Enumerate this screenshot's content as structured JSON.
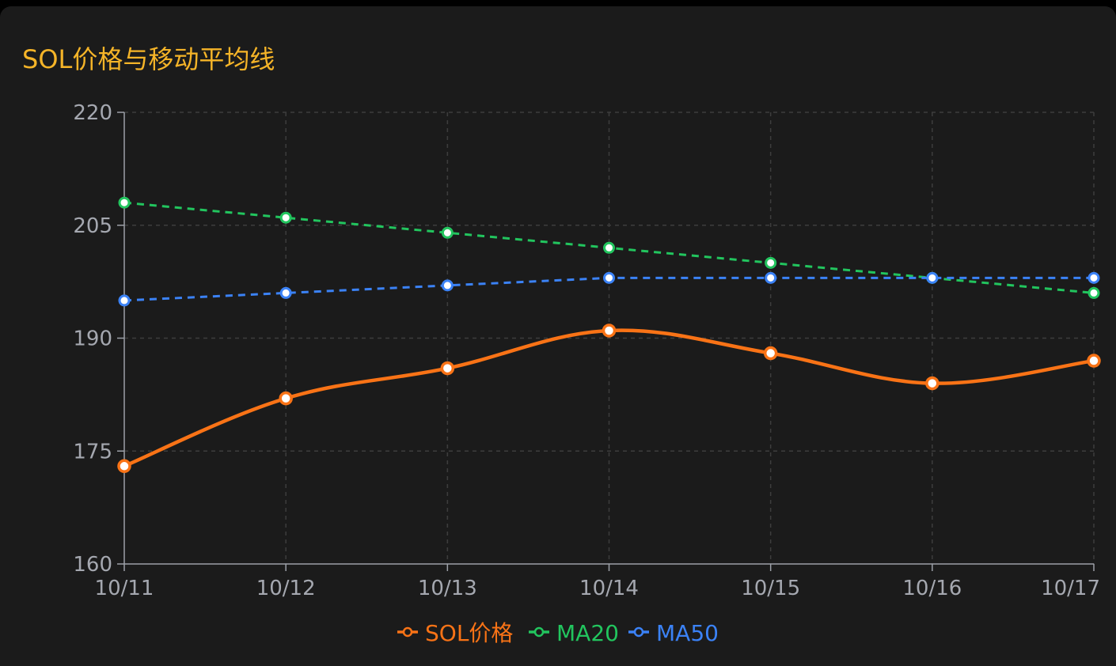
{
  "title": "SOL价格与移动平均线",
  "chart_data": {
    "type": "line",
    "title": "SOL价格与移动平均线",
    "xlabel": "",
    "ylabel": "",
    "categories": [
      "10/11",
      "10/12",
      "10/13",
      "10/14",
      "10/15",
      "10/16",
      "10/17"
    ],
    "ylim": [
      160,
      220
    ],
    "yticks": [
      160,
      175,
      190,
      205,
      220
    ],
    "grid": true,
    "legend_position": "bottom",
    "series": [
      {
        "name": "SOL价格",
        "values": [
          173,
          182,
          186,
          191,
          188,
          184,
          187
        ],
        "color": "#f97316",
        "style": "solid",
        "smooth": true
      },
      {
        "name": "MA20",
        "values": [
          208,
          206,
          204,
          202,
          200,
          198,
          196
        ],
        "color": "#22c55e",
        "style": "dashed",
        "smooth": false
      },
      {
        "name": "MA50",
        "values": [
          195,
          196,
          197,
          198,
          198,
          198,
          198
        ],
        "color": "#3b82f6",
        "style": "dashed",
        "smooth": false
      }
    ]
  },
  "colors": {
    "background": "#1b1b1b",
    "title": "#f5b428",
    "grid": "#3d3d3d",
    "axis": "#9ca0a8",
    "tick_text": "#a5a8b0"
  }
}
